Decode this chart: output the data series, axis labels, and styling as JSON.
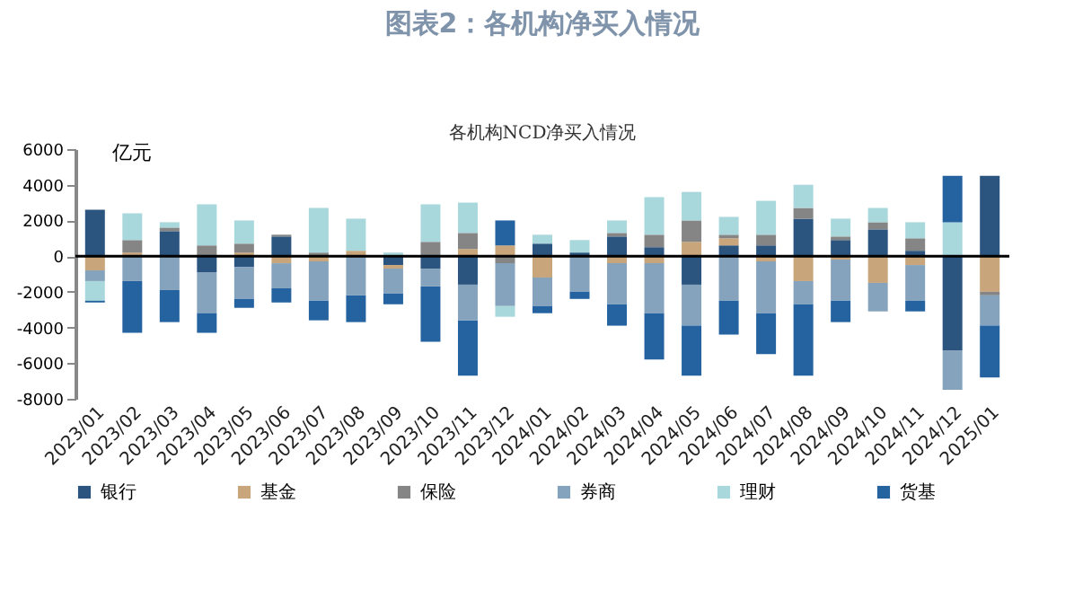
{
  "chart_data": {
    "type": "bar",
    "stacked": true,
    "title": "图表2：各机构净买入情况",
    "subtitle": "各机构NCD净买入情况",
    "ylabel": "亿元",
    "categories": [
      "2023/01",
      "2023/02",
      "2023/03",
      "2023/04",
      "2023/05",
      "2023/06",
      "2023/07",
      "2023/08",
      "2023/09",
      "2023/10",
      "2023/11",
      "2023/12",
      "2024/01",
      "2024/02",
      "2024/03",
      "2024/04",
      "2024/05",
      "2024/06",
      "2024/07",
      "2024/08",
      "2024/09",
      "2024/10",
      "2024/11",
      "2024/12",
      "2025/01"
    ],
    "series": [
      {
        "name": "银行",
        "color": "#2b557f",
        "values": [
          2600,
          0,
          1400,
          -900,
          -600,
          1100,
          0,
          0,
          -500,
          -700,
          -1600,
          0,
          700,
          200,
          1100,
          500,
          -1600,
          600,
          600,
          2100,
          900,
          1500,
          300,
          -5300,
          4500
        ]
      },
      {
        "name": "基金",
        "color": "#c8a57a",
        "values": [
          -800,
          200,
          0,
          0,
          200,
          -400,
          -300,
          300,
          -200,
          0,
          400,
          600,
          -1200,
          0,
          -400,
          -400,
          800,
          400,
          -300,
          -1400,
          -200,
          -1500,
          -500,
          0,
          -2000
        ]
      },
      {
        "name": "保险",
        "color": "#858585",
        "values": [
          0,
          700,
          200,
          600,
          500,
          100,
          200,
          0,
          0,
          800,
          900,
          -400,
          0,
          0,
          200,
          700,
          1200,
          200,
          600,
          600,
          200,
          400,
          700,
          0,
          -200
        ]
      },
      {
        "name": "券商",
        "color": "#86a3bd",
        "values": [
          -600,
          -1400,
          -1900,
          -2300,
          -1800,
          -1400,
          -2200,
          -2200,
          -1400,
          -1000,
          -2000,
          -2400,
          -1600,
          -2000,
          -2300,
          -2800,
          -2300,
          -2500,
          -2900,
          -1300,
          -2300,
          -1600,
          -2000,
          -2200,
          -1700
        ]
      },
      {
        "name": "理财",
        "color": "#a9d8dc",
        "values": [
          -1100,
          1500,
          300,
          2300,
          1300,
          null,
          2500,
          1800,
          200,
          2100,
          1700,
          -600,
          500,
          700,
          700,
          2100,
          1600,
          1000,
          1900,
          1300,
          1000,
          800,
          900,
          1900,
          0
        ]
      },
      {
        "name": "货基",
        "color": "#2563a0",
        "values": [
          -100,
          -2900,
          -1800,
          -1100,
          -500,
          -800,
          -1100,
          -1500,
          -600,
          -3100,
          -3100,
          1400,
          -400,
          -400,
          -1200,
          -2600,
          -2800,
          -1900,
          -2300,
          -4000,
          -1200,
          0,
          -600,
          2600,
          -2900
        ]
      }
    ],
    "ylim": [
      -8000,
      6000
    ],
    "yticks": [
      -8000,
      -6000,
      -4000,
      -2000,
      0,
      2000,
      4000,
      6000
    ],
    "ref_lines": [
      {
        "axis": "y",
        "value": 0,
        "color": "#000000"
      }
    ],
    "grid": false,
    "legend": "bottom"
  }
}
